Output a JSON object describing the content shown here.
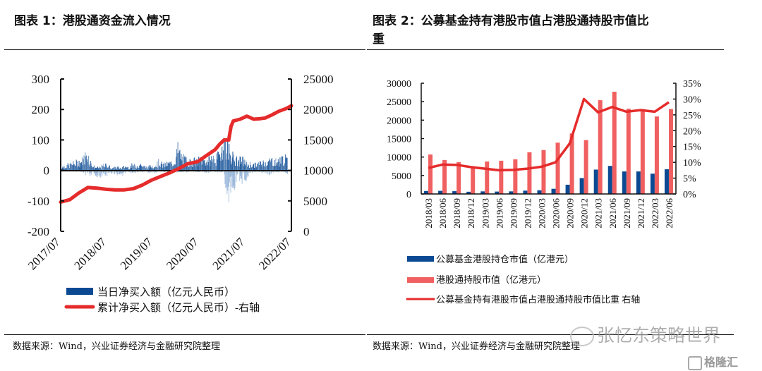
{
  "figure1": {
    "title": "图表 1：港股通资金流入情况",
    "source": "数据来源：Wind，兴业证券经济与金融研究院整理"
  },
  "figure2": {
    "title_line1": "图表 2：公募基金持有港股市值占港股通持股市值比",
    "title_line2": "重",
    "source": "数据来源：Wind，兴业证券经济与金融研究院整理"
  },
  "watermark": {
    "text": "张忆东策略世界",
    "brand": "格隆汇"
  },
  "colors": {
    "navy": "#0b4a93",
    "pink": "#f06060",
    "red": "#e52b2b",
    "axis": "#111111"
  },
  "chart_data": [
    {
      "type": "bar+line",
      "title": "图表 1：港股通资金流入情况",
      "x_tick_labels": [
        "2017/07",
        "2018/07",
        "2019/07",
        "2020/07",
        "2021/07",
        "2022/07"
      ],
      "x_range": [
        2017.5,
        2022.58
      ],
      "left_axis": {
        "ylim": [
          -200,
          300
        ],
        "ticks": [
          "300",
          "200",
          "100",
          "0",
          "-100",
          "-200"
        ],
        "tick_values": [
          300,
          200,
          100,
          0,
          -100,
          -200
        ]
      },
      "right_axis": {
        "ylim": [
          0,
          25000
        ],
        "ticks": [
          "25000",
          "20000",
          "15000",
          "10000",
          "5000",
          "0"
        ],
        "tick_values": [
          25000,
          20000,
          15000,
          10000,
          5000,
          0
        ]
      },
      "legend": [
        "当日净买入额（亿元人民币）",
        "累计净买入额（亿元人民币）-右轴"
      ],
      "series": [
        {
          "name": "当日净买入额（亿元人民币）",
          "type": "bar",
          "axis": "left",
          "note": "daily net buy, approximate envelope sampled monthly",
          "x": [
            2017.5,
            2017.58,
            2017.67,
            2017.75,
            2017.83,
            2017.92,
            2018.0,
            2018.08,
            2018.17,
            2018.25,
            2018.33,
            2018.42,
            2018.5,
            2018.58,
            2018.67,
            2018.75,
            2018.83,
            2018.92,
            2019.0,
            2019.08,
            2019.17,
            2019.25,
            2019.33,
            2019.42,
            2019.5,
            2019.58,
            2019.67,
            2019.75,
            2019.83,
            2019.92,
            2020.0,
            2020.08,
            2020.17,
            2020.25,
            2020.33,
            2020.42,
            2020.5,
            2020.58,
            2020.67,
            2020.75,
            2020.83,
            2020.92,
            2021.0,
            2021.08,
            2021.17,
            2021.25,
            2021.33,
            2021.42,
            2021.5,
            2021.58,
            2021.67,
            2021.75,
            2021.83,
            2021.92,
            2022.0,
            2022.08,
            2022.17,
            2022.25,
            2022.33,
            2022.42,
            2022.5
          ],
          "high": [
            15,
            20,
            25,
            30,
            35,
            40,
            50,
            85,
            30,
            15,
            12,
            20,
            25,
            18,
            12,
            15,
            10,
            20,
            15,
            25,
            20,
            30,
            18,
            15,
            20,
            25,
            40,
            25,
            30,
            35,
            40,
            100,
            60,
            50,
            40,
            45,
            40,
            55,
            50,
            45,
            60,
            55,
            70,
            150,
            120,
            80,
            50,
            45,
            50,
            35,
            30,
            25,
            30,
            35,
            40,
            45,
            50,
            40,
            50,
            60,
            40
          ],
          "low": [
            -5,
            -5,
            -3,
            -5,
            -5,
            -5,
            -10,
            -30,
            -25,
            -20,
            -30,
            -30,
            -25,
            -20,
            -15,
            -20,
            -30,
            -10,
            -10,
            -10,
            -15,
            -10,
            -5,
            -10,
            -10,
            -10,
            -5,
            -5,
            -10,
            -5,
            -5,
            -10,
            -5,
            -10,
            -5,
            -10,
            -10,
            -5,
            -10,
            -10,
            -5,
            -10,
            -10,
            -5,
            -150,
            -80,
            -70,
            -60,
            -50,
            -40,
            -10,
            -10,
            -5,
            -10,
            -10,
            -20,
            -10,
            -10,
            -5,
            -10,
            -20
          ]
        },
        {
          "name": "累计净买入额（亿元人民币）-右轴",
          "type": "line",
          "axis": "right",
          "x": [
            2017.5,
            2017.7,
            2017.9,
            2018.1,
            2018.3,
            2018.5,
            2018.7,
            2018.9,
            2019.1,
            2019.3,
            2019.5,
            2019.7,
            2019.9,
            2020.1,
            2020.3,
            2020.5,
            2020.55,
            2020.7,
            2020.9,
            2021.0,
            2021.1,
            2021.2,
            2021.25,
            2021.3,
            2021.45,
            2021.6,
            2021.75,
            2021.9,
            2022.0,
            2022.15,
            2022.3,
            2022.45,
            2022.58
          ],
          "y": [
            4800,
            5200,
            6300,
            7200,
            7100,
            6900,
            6800,
            6800,
            7000,
            7600,
            8400,
            9000,
            9600,
            10300,
            11100,
            11400,
            11600,
            12400,
            13400,
            14300,
            15000,
            15000,
            17200,
            18100,
            18400,
            18900,
            18400,
            18500,
            18600,
            19100,
            19700,
            20100,
            20600
          ]
        }
      ]
    },
    {
      "type": "bar+line",
      "title": "图表 2：公募基金持有港股市值占港股通持股市值比重",
      "categories": [
        "2018/03",
        "2018/06",
        "2018/09",
        "2018/12",
        "2019/03",
        "2019/06",
        "2019/09",
        "2019/12",
        "2020/03",
        "2020/06",
        "2020/09",
        "2020/12",
        "2021/03",
        "2021/06",
        "2021/09",
        "2021/12",
        "2022/03",
        "2022/06"
      ],
      "left_axis": {
        "ylim": [
          0,
          30000
        ],
        "ticks": [
          "30000",
          "25000",
          "20000",
          "15000",
          "10000",
          "5000",
          "0"
        ],
        "tick_values": [
          30000,
          25000,
          20000,
          15000,
          10000,
          5000,
          0
        ]
      },
      "right_axis": {
        "ylim": [
          0,
          35
        ],
        "ticks": [
          "35%",
          "30%",
          "25%",
          "20%",
          "15%",
          "10%",
          "5%",
          "0%"
        ],
        "tick_values": [
          35,
          30,
          25,
          20,
          15,
          10,
          5,
          0
        ]
      },
      "legend": [
        "公募基金港股持仓市值（亿港元）",
        "港股通持股市值（亿港元）",
        "公募基金持有港股市值占港股通持股市值比重 右轴"
      ],
      "series": [
        {
          "name": "公募基金港股持仓市值（亿港元）",
          "type": "bar",
          "axis": "left",
          "values": [
            800,
            850,
            750,
            600,
            700,
            650,
            700,
            900,
            1000,
            1400,
            2500,
            4300,
            6600,
            7600,
            6100,
            6100,
            5500,
            6700
          ]
        },
        {
          "name": "港股通持股市值（亿港元）",
          "type": "bar",
          "axis": "left",
          "values": [
            10700,
            9200,
            8600,
            7300,
            8800,
            9000,
            9400,
            11300,
            11900,
            13900,
            16400,
            14600,
            25400,
            27700,
            23100,
            23000,
            21000,
            23000
          ]
        },
        {
          "name": "公募基金持有港股市值占港股通持股市值比重 右轴",
          "type": "line",
          "axis": "right",
          "values": [
            8.2,
            9.3,
            9.2,
            8.5,
            8.0,
            7.5,
            7.6,
            8.0,
            8.6,
            10.0,
            16.0,
            30.0,
            25.8,
            27.5,
            26.0,
            26.5,
            26.0,
            29.0
          ]
        }
      ]
    }
  ]
}
